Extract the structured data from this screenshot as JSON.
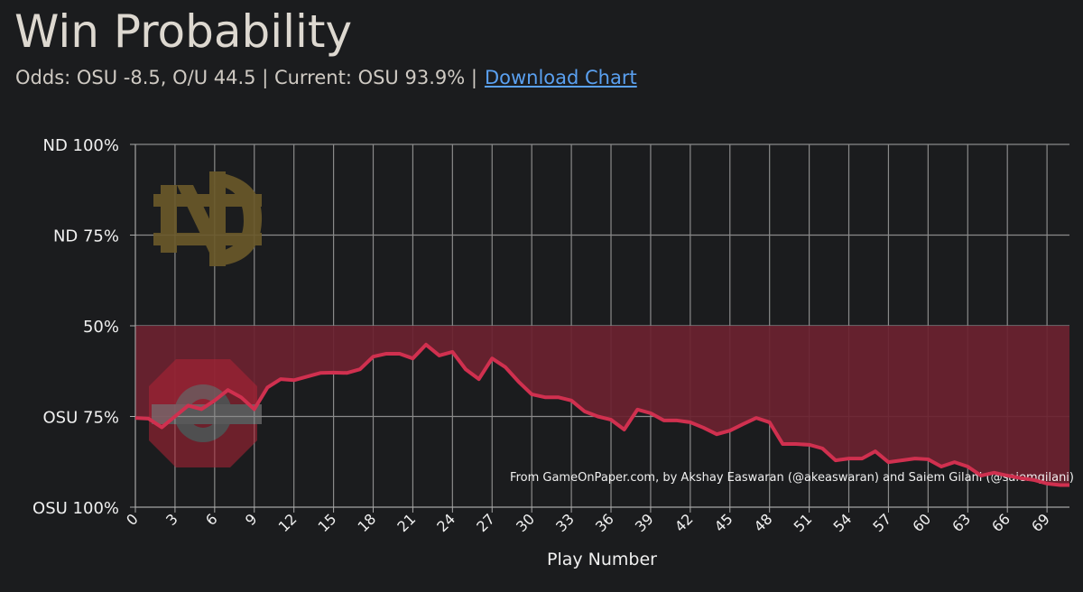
{
  "chart_data": {
    "type": "line",
    "title": "Win Probability",
    "subtitle": "Odds: OSU -8.5, O/U 44.5 | Current: OSU 93.9% |",
    "link": "Download Chart",
    "xlabel": "Play Number",
    "credit": "From GameOnPaper.com, by Akshay Easwaran (@akeaswaran) and Saiem Gilani (@saiemgilani)",
    "xlim": [
      0,
      70.7
    ],
    "ylim": [
      100,
      0
    ],
    "baseline": 50,
    "xticks": [
      0,
      3,
      6,
      9,
      12,
      15,
      18,
      21,
      24,
      27,
      30,
      33,
      36,
      39,
      42,
      45,
      48,
      51,
      54,
      57,
      60,
      63,
      66,
      69
    ],
    "yticks": [
      {
        "value": 0,
        "label": "ND 100%"
      },
      {
        "value": 25,
        "label": "ND 75%"
      },
      {
        "value": 50,
        "label": "50%"
      },
      {
        "value": 75,
        "label": "OSU 75%"
      },
      {
        "value": 100,
        "label": "OSU 100%"
      }
    ],
    "grid": true,
    "series": [
      {
        "name": "OSU",
        "color": "#d0304f",
        "fill": "#6b2230",
        "x": [
          0,
          1,
          2,
          3,
          4,
          5,
          6,
          7,
          8,
          9,
          10,
          11,
          12,
          13,
          14,
          15,
          16,
          17,
          18,
          19,
          20,
          21,
          22,
          23,
          24,
          25,
          26,
          27,
          28,
          29,
          30,
          31,
          32,
          33,
          34,
          35,
          36,
          37,
          38,
          39,
          40,
          41,
          42,
          43,
          44,
          45,
          46,
          47,
          48,
          49,
          50,
          51,
          52,
          53,
          54,
          55,
          56,
          57,
          58,
          59,
          60,
          61,
          62,
          63,
          64,
          65,
          66,
          67,
          68,
          69,
          70
        ],
        "values": [
          75.4,
          75.6,
          78,
          75,
          72,
          73,
          70.6,
          67.7,
          69.7,
          73,
          67,
          64.7,
          65,
          64,
          63,
          62.9,
          63,
          62,
          58.5,
          57.7,
          57.7,
          59,
          55.2,
          58.2,
          57.2,
          62,
          64.7,
          59,
          61.4,
          65.4,
          68.9,
          69.7,
          69.7,
          70.6,
          73.6,
          75,
          75.9,
          78.6,
          73.1,
          74.1,
          76.1,
          76.1,
          76.6,
          78.1,
          79.9,
          78.9,
          77.1,
          75.4,
          76.6,
          82.6,
          82.6,
          82.8,
          83.8,
          87.1,
          86.6,
          86.6,
          84.6,
          87.6,
          87.1,
          86.6,
          86.8,
          88.8,
          87.6,
          88.8,
          91.3,
          90.5,
          91.3,
          92,
          92.5,
          93.5,
          93.9
        ]
      }
    ]
  }
}
